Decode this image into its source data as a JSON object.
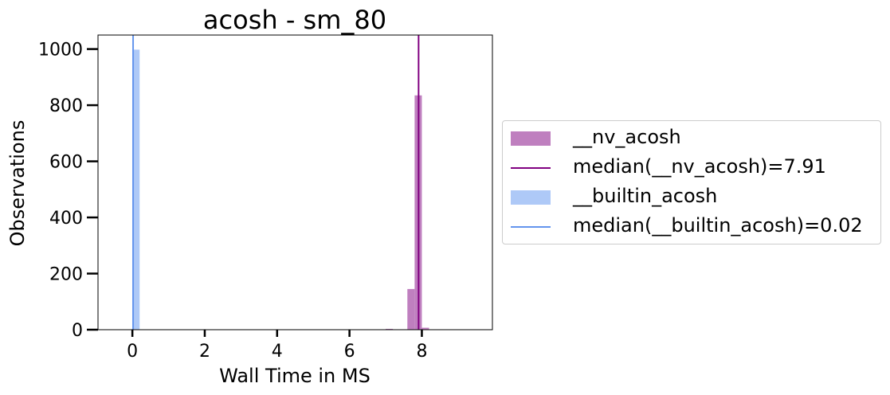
{
  "chart_data": {
    "type": "bar",
    "title": "acosh - sm_80",
    "xlabel": "Wall Time in MS",
    "ylabel": "Observations",
    "xlim": [
      -0.95,
      9.95
    ],
    "ylim": [
      0,
      1050
    ],
    "xticks": [
      0,
      2,
      4,
      6,
      8
    ],
    "yticks": [
      0,
      200,
      400,
      600,
      800,
      1000
    ],
    "grid": false,
    "legend_position": "right, outside plot",
    "series": [
      {
        "name": "__nv_acosh",
        "color": "#bf7fbf",
        "bin_width": 0.2,
        "bins": [
          {
            "x": 7.1,
            "y": 3
          },
          {
            "x": 7.7,
            "y": 145
          },
          {
            "x": 7.9,
            "y": 835
          },
          {
            "x": 8.1,
            "y": 7
          }
        ]
      },
      {
        "name": "__builtin_acosh",
        "color": "#aec9f7",
        "bin_width": 0.2,
        "bins": [
          {
            "x": 0.1,
            "y": 998
          }
        ]
      }
    ],
    "medians": [
      {
        "name": "median(__nv_acosh)=7.91",
        "value": 7.91,
        "color": "#800080"
      },
      {
        "name": "median(__builtin_acosh)=0.02",
        "value": 0.02,
        "color": "#6495ed"
      }
    ]
  }
}
